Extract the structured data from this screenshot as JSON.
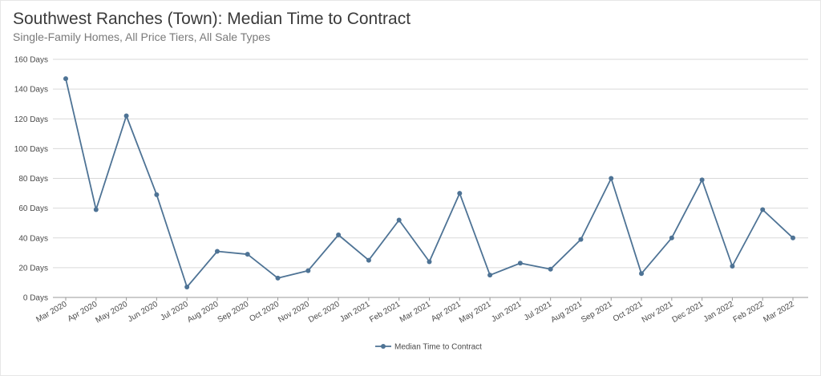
{
  "title": "Southwest Ranches (Town): Median Time to Contract",
  "subtitle": "Single-Family Homes, All Price Tiers, All Sale Types",
  "colors": {
    "series": "#4e7395",
    "grid": "#d9d9d9",
    "axis": "#999999"
  },
  "chart_data": {
    "type": "line",
    "title": "Southwest Ranches (Town): Median Time to Contract",
    "subtitle": "Single-Family Homes, All Price Tiers, All Sale Types",
    "xlabel": "",
    "ylabel": "",
    "ylim": [
      0,
      160
    ],
    "yticks": [
      0,
      20,
      40,
      60,
      80,
      100,
      120,
      140,
      160
    ],
    "ytick_labels": [
      "0 Days",
      "20 Days",
      "40 Days",
      "60 Days",
      "80 Days",
      "100 Days",
      "120 Days",
      "140 Days",
      "160 Days"
    ],
    "grid": true,
    "legend_position": "bottom-center",
    "categories": [
      "Mar 2020",
      "Apr 2020",
      "May 2020",
      "Jun 2020",
      "Jul 2020",
      "Aug 2020",
      "Sep 2020",
      "Oct 2020",
      "Nov 2020",
      "Dec 2020",
      "Jan 2021",
      "Feb 2021",
      "Mar 2021",
      "Apr 2021",
      "May 2021",
      "Jun 2021",
      "Jul 2021",
      "Aug 2021",
      "Sep 2021",
      "Oct 2021",
      "Nov 2021",
      "Dec 2021",
      "Jan 2022",
      "Feb 2022",
      "Mar 2022"
    ],
    "series": [
      {
        "name": "Median Time to Contract",
        "values": [
          147,
          59,
          122,
          69,
          7,
          31,
          29,
          13,
          18,
          42,
          25,
          52,
          24,
          70,
          15,
          23,
          19,
          39,
          80,
          16,
          40,
          79,
          21,
          59,
          40
        ]
      }
    ]
  }
}
